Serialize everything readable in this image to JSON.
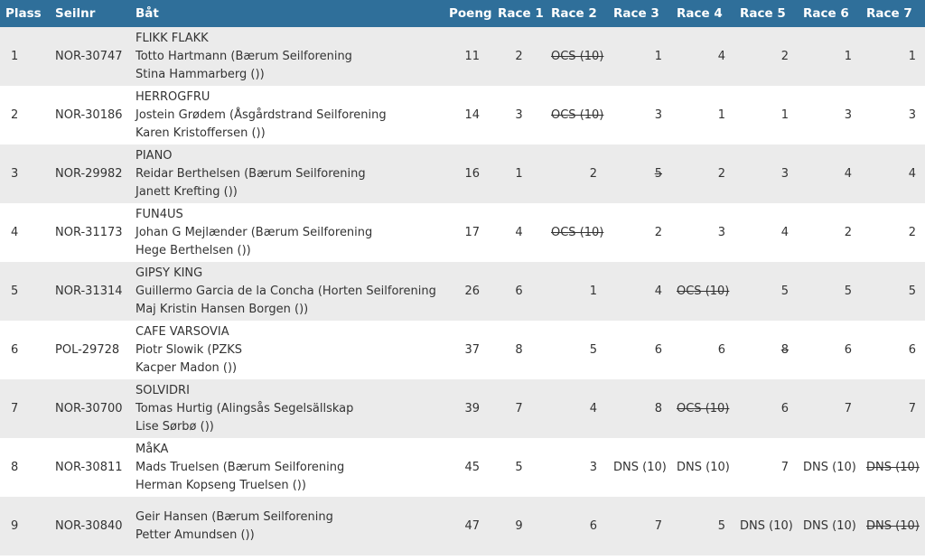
{
  "headers": {
    "plass": "Plass",
    "seilnr": "Seilnr",
    "bat": "Båt",
    "poeng": "Poeng",
    "race1": "Race 1",
    "race2": "Race 2",
    "race3": "Race 3",
    "race4": "Race 4",
    "race5": "Race 5",
    "race6": "Race 6",
    "race7": "Race 7"
  },
  "rows": [
    {
      "plass": "1",
      "seilnr": "NOR-30747",
      "boat": "FLIKK FLAKK",
      "helm": "Totto Hartmann (Bærum Seilforening",
      "crew": "Stina Hammarberg ())",
      "poeng": "11",
      "races": [
        {
          "v": "2",
          "d": false
        },
        {
          "v": "OCS (10)",
          "d": true
        },
        {
          "v": "1",
          "d": false
        },
        {
          "v": "4",
          "d": false
        },
        {
          "v": "2",
          "d": false
        },
        {
          "v": "1",
          "d": false
        },
        {
          "v": "1",
          "d": false
        }
      ]
    },
    {
      "plass": "2",
      "seilnr": "NOR-30186",
      "boat": "HERROGFRU",
      "helm": "Jostein Grødem (Åsgårdstrand Seilforening",
      "crew": "Karen Kristoffersen ())",
      "poeng": "14",
      "races": [
        {
          "v": "3",
          "d": false
        },
        {
          "v": "OCS (10)",
          "d": true
        },
        {
          "v": "3",
          "d": false
        },
        {
          "v": "1",
          "d": false
        },
        {
          "v": "1",
          "d": false
        },
        {
          "v": "3",
          "d": false
        },
        {
          "v": "3",
          "d": false
        }
      ]
    },
    {
      "plass": "3",
      "seilnr": "NOR-29982",
      "boat": "PIANO",
      "helm": "Reidar Berthelsen (Bærum Seilforening",
      "crew": "Janett Krefting ())",
      "poeng": "16",
      "races": [
        {
          "v": "1",
          "d": false
        },
        {
          "v": "2",
          "d": false
        },
        {
          "v": "5",
          "d": true
        },
        {
          "v": "2",
          "d": false
        },
        {
          "v": "3",
          "d": false
        },
        {
          "v": "4",
          "d": false
        },
        {
          "v": "4",
          "d": false
        }
      ]
    },
    {
      "plass": "4",
      "seilnr": "NOR-31173",
      "boat": "FUN4US",
      "helm": "Johan G Mejlænder (Bærum Seilforening",
      "crew": "Hege Berthelsen ())",
      "poeng": "17",
      "races": [
        {
          "v": "4",
          "d": false
        },
        {
          "v": "OCS (10)",
          "d": true
        },
        {
          "v": "2",
          "d": false
        },
        {
          "v": "3",
          "d": false
        },
        {
          "v": "4",
          "d": false
        },
        {
          "v": "2",
          "d": false
        },
        {
          "v": "2",
          "d": false
        }
      ]
    },
    {
      "plass": "5",
      "seilnr": "NOR-31314",
      "boat": "GIPSY KING",
      "helm": "Guillermo Garcia de la Concha (Horten Seilforening",
      "crew": "Maj Kristin Hansen Borgen ())",
      "poeng": "26",
      "races": [
        {
          "v": "6",
          "d": false
        },
        {
          "v": "1",
          "d": false
        },
        {
          "v": "4",
          "d": false
        },
        {
          "v": "OCS (10)",
          "d": true
        },
        {
          "v": "5",
          "d": false
        },
        {
          "v": "5",
          "d": false
        },
        {
          "v": "5",
          "d": false
        }
      ]
    },
    {
      "plass": "6",
      "seilnr": "POL-29728",
      "boat": "CAFE VARSOVIA",
      "helm": "Piotr Slowik (PZKS",
      "crew": "Kacper Madon ())",
      "poeng": "37",
      "races": [
        {
          "v": "8",
          "d": false
        },
        {
          "v": "5",
          "d": false
        },
        {
          "v": "6",
          "d": false
        },
        {
          "v": "6",
          "d": false
        },
        {
          "v": "8",
          "d": true
        },
        {
          "v": "6",
          "d": false
        },
        {
          "v": "6",
          "d": false
        }
      ]
    },
    {
      "plass": "7",
      "seilnr": "NOR-30700",
      "boat": "SOLVIDRI",
      "helm": "Tomas Hurtig (Alingsås Segelsällskap",
      "crew": "Lise Sørbø ())",
      "poeng": "39",
      "races": [
        {
          "v": "7",
          "d": false
        },
        {
          "v": "4",
          "d": false
        },
        {
          "v": "8",
          "d": false
        },
        {
          "v": "OCS (10)",
          "d": true
        },
        {
          "v": "6",
          "d": false
        },
        {
          "v": "7",
          "d": false
        },
        {
          "v": "7",
          "d": false
        }
      ]
    },
    {
      "plass": "8",
      "seilnr": "NOR-30811",
      "boat": "MåKA",
      "helm": "Mads Truelsen (Bærum Seilforening",
      "crew": "Herman Kopseng Truelsen ())",
      "poeng": "45",
      "races": [
        {
          "v": "5",
          "d": false
        },
        {
          "v": "3",
          "d": false
        },
        {
          "v": "DNS (10)",
          "d": false
        },
        {
          "v": "DNS (10)",
          "d": false
        },
        {
          "v": "7",
          "d": false
        },
        {
          "v": "DNS (10)",
          "d": false
        },
        {
          "v": "DNS (10)",
          "d": true
        }
      ]
    },
    {
      "plass": "9",
      "seilnr": "NOR-30840",
      "boat": "",
      "helm": "Geir Hansen (Bærum Seilforening",
      "crew": "Petter Amundsen ())",
      "poeng": "47",
      "races": [
        {
          "v": "9",
          "d": false
        },
        {
          "v": "6",
          "d": false
        },
        {
          "v": "7",
          "d": false
        },
        {
          "v": "5",
          "d": false
        },
        {
          "v": "DNS (10)",
          "d": false
        },
        {
          "v": "DNS (10)",
          "d": false
        },
        {
          "v": "DNS (10)",
          "d": true
        }
      ]
    }
  ],
  "colors": {
    "header_bg": "#2f6f9a",
    "header_text": "#ffffff",
    "row_alt_bg": "#ebebeb"
  }
}
